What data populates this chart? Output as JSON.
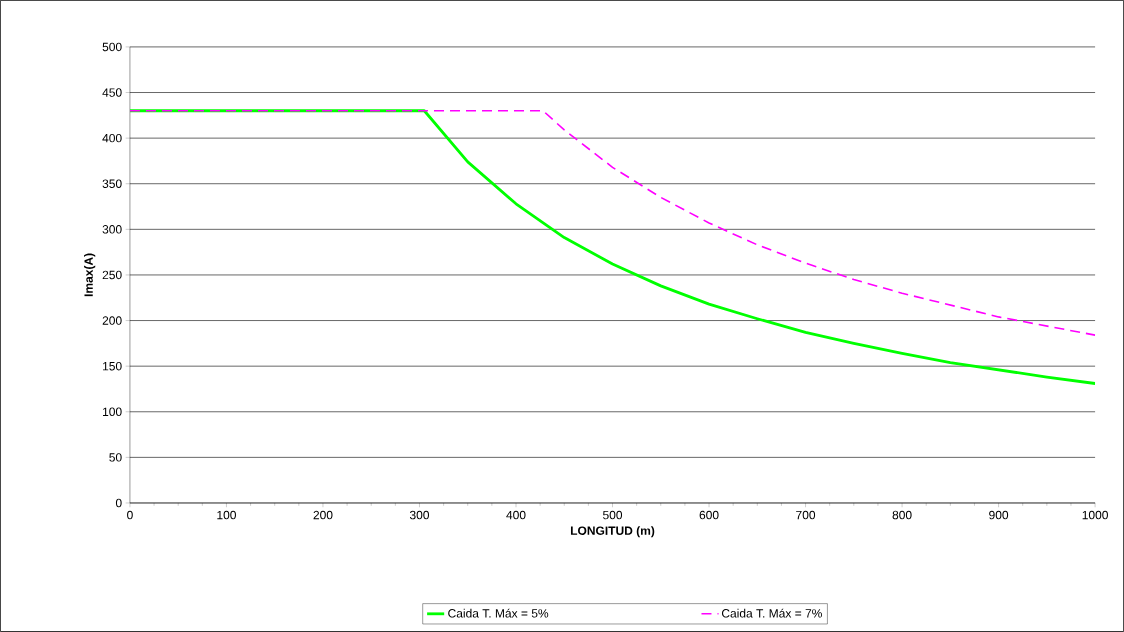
{
  "chart_data": {
    "type": "line",
    "xlabel": "LONGITUD (m)",
    "ylabel": "Imax(A)",
    "xlim": [
      0,
      1000
    ],
    "ylim": [
      0,
      500
    ],
    "xticks": [
      0,
      100,
      200,
      300,
      400,
      500,
      600,
      700,
      800,
      900,
      1000
    ],
    "yticks": [
      0,
      50,
      100,
      150,
      200,
      250,
      300,
      350,
      400,
      450,
      500
    ],
    "grid": "y",
    "legend": "bottom",
    "marker": "none",
    "series": [
      {
        "name": "Caida T. Máx = 5%",
        "color": "#00ff00",
        "line_style": "solid",
        "x": [
          0,
          305,
          350,
          400,
          450,
          500,
          550,
          600,
          650,
          700,
          750,
          800,
          850,
          900,
          950,
          1000
        ],
        "values": [
          430,
          430,
          374,
          328,
          291,
          262,
          238,
          218,
          202,
          187,
          175,
          164,
          154,
          146,
          138,
          131
        ]
      },
      {
        "name": "Caida T. Máx = 7%",
        "color": "#ff00ff",
        "line_style": "dashed",
        "x": [
          0,
          428,
          450,
          500,
          550,
          600,
          650,
          700,
          750,
          800,
          850,
          900,
          950,
          1000
        ],
        "values": [
          430,
          430,
          409,
          368,
          335,
          307,
          283,
          263,
          245,
          230,
          217,
          204,
          194,
          184
        ]
      }
    ]
  }
}
